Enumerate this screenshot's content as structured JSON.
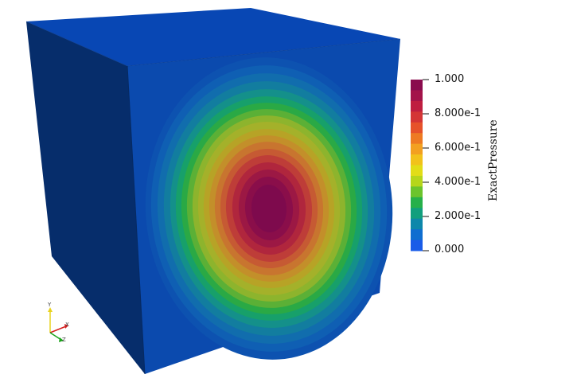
{
  "scalar_bar": {
    "title": "ExactPressure",
    "ticks": [
      "1.000",
      "8.000e-1",
      "6.000e-1",
      "4.000e-1",
      "2.000e-1",
      "0.000"
    ],
    "range": [
      0,
      1
    ],
    "color_steps": [
      "#8a0b4e",
      "#a3134a",
      "#bf1e40",
      "#d43535",
      "#e6522a",
      "#ee7a22",
      "#f3a020",
      "#f2c21b",
      "#e2dd17",
      "#b6d61b",
      "#6cc42d",
      "#27b04a",
      "#119f7d",
      "#0d87aa",
      "#0f6ed0",
      "#1a5ce8"
    ]
  },
  "scene": {
    "object": "cube",
    "face_colors": {
      "top": "#0847b4",
      "left": "#062d6b",
      "front": "#0b4aae"
    }
  },
  "axes": {
    "x": "X",
    "y": "Y",
    "z": "Z",
    "x_color": "#d62020",
    "y_color": "#e8d21e",
    "z_color": "#1aa31a"
  }
}
